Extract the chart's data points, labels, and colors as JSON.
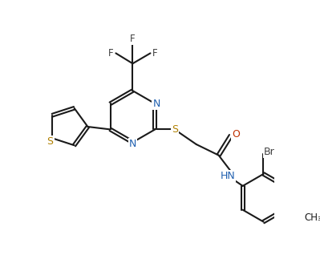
{
  "bg_color": "#ffffff",
  "line_color": "#1a1a1a",
  "atom_colors": {
    "N": "#2060b0",
    "S": "#b08000",
    "O": "#c03000",
    "F": "#404040",
    "Br": "#404040",
    "C": "#1a1a1a"
  },
  "figsize": [
    3.99,
    3.33
  ],
  "dpi": 100
}
